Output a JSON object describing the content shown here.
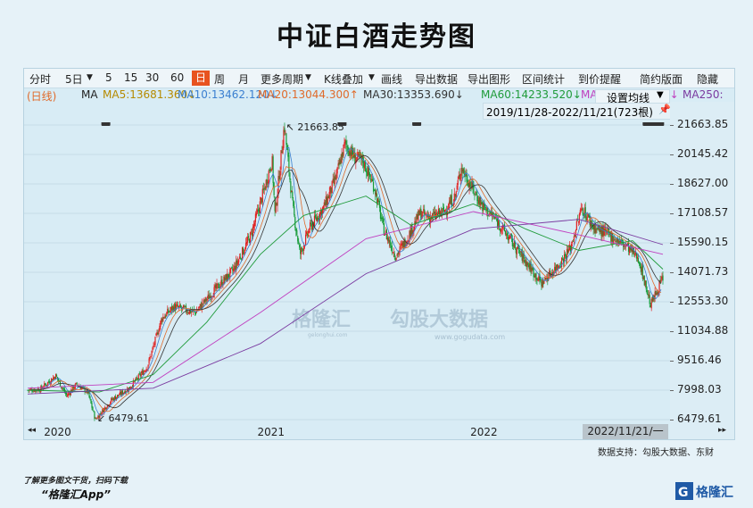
{
  "title": "中证白酒走势图",
  "toolbar": {
    "items": [
      "分时",
      "5日",
      "5",
      "15",
      "30",
      "60",
      "日",
      "周",
      "月",
      "更多周期",
      "K线叠加",
      "画线",
      "导出数据",
      "导出图形",
      "区间统计",
      "到价提醒",
      "简约版面",
      "隐藏"
    ],
    "active": "日",
    "dropdown_arrow": "▼"
  },
  "ma_row": {
    "prefix": "(日线)",
    "ma_label": "MA",
    "items": [
      {
        "text": "MA5:13681.360↓",
        "color": "#b58a00"
      },
      {
        "text": "MA10:13462.120↓",
        "color": "#3a7fd0"
      },
      {
        "text": "MA20:13044.300↑",
        "color": "#e06a2a"
      },
      {
        "text": "MA30:13353.690↓",
        "color": "#333333"
      },
      {
        "text": "MA60:14233.520↓",
        "color": "#1f9b3a"
      },
      {
        "text": "MA",
        "color": "#c040c0"
      },
      {
        "text": "0↓",
        "color": "#c040c0"
      },
      {
        "text": "MA250:",
        "color": "#7a3aa0"
      }
    ]
  },
  "settings": {
    "label": "设置均线",
    "arrow": "▼"
  },
  "range": {
    "text": "2019/11/28-2022/11/21(723根)",
    "pin_icon": "pin-icon"
  },
  "max_label": "21663.85",
  "min_label": "6479.61",
  "watermark": {
    "brand": "格隆汇",
    "sub": "gelonghui.com",
    "brand2": "勾股大数据",
    "sub2": "www.gogudata.com"
  },
  "current_date": "2022/11/21/一",
  "source": "数据支持：勾股大数据、东财",
  "footnote_line1": "了解更多图文干货，扫码下载",
  "footnote_line2": "“格隆汇App”",
  "logo_text": "格隆汇",
  "nav_left": "◂◂",
  "nav_right": "▸▸",
  "chart_data": {
    "type": "candlestick",
    "title": "中证白酒走势图",
    "x_range": [
      "2019/11/28",
      "2022/11/21"
    ],
    "bars": 723,
    "ylim": [
      6479.61,
      21663.85
    ],
    "y_ticks": [
      21663.85,
      20145.42,
      18627.0,
      17108.57,
      15590.15,
      14071.73,
      12553.3,
      11034.88,
      9516.46,
      7998.03,
      6479.61
    ],
    "x_ticks": [
      {
        "label": "2020",
        "date": "2020-01-01"
      },
      {
        "label": "2021",
        "date": "2021-01-01"
      },
      {
        "label": "2022",
        "date": "2022-01-01"
      }
    ],
    "close_series": [
      [
        "2019-11-28",
        8000
      ],
      [
        "2019-12-20",
        8050
      ],
      [
        "2020-01-15",
        8750
      ],
      [
        "2020-02-03",
        7700
      ],
      [
        "2020-02-20",
        8300
      ],
      [
        "2020-03-10",
        7900
      ],
      [
        "2020-03-23",
        6480
      ],
      [
        "2020-04-20",
        7500
      ],
      [
        "2020-05-20",
        8100
      ],
      [
        "2020-06-20",
        9200
      ],
      [
        "2020-07-15",
        11700
      ],
      [
        "2020-08-05",
        12300
      ],
      [
        "2020-09-10",
        12000
      ],
      [
        "2020-10-15",
        13200
      ],
      [
        "2020-11-15",
        14200
      ],
      [
        "2020-12-15",
        16000
      ],
      [
        "2021-01-08",
        18500
      ],
      [
        "2021-01-20",
        19900
      ],
      [
        "2021-01-25",
        17000
      ],
      [
        "2021-02-10",
        21664
      ],
      [
        "2021-02-25",
        17300
      ],
      [
        "2021-03-09",
        15000
      ],
      [
        "2021-03-25",
        16300
      ],
      [
        "2021-04-20",
        17500
      ],
      [
        "2021-05-10",
        19000
      ],
      [
        "2021-05-25",
        20700
      ],
      [
        "2021-06-10",
        20000
      ],
      [
        "2021-06-25",
        19800
      ],
      [
        "2021-07-15",
        18400
      ],
      [
        "2021-07-30",
        16300
      ],
      [
        "2021-08-20",
        14900
      ],
      [
        "2021-09-10",
        15900
      ],
      [
        "2021-09-30",
        17100
      ],
      [
        "2021-10-20",
        16900
      ],
      [
        "2021-11-10",
        17200
      ],
      [
        "2021-11-30",
        18000
      ],
      [
        "2021-12-10",
        19500
      ],
      [
        "2021-12-24",
        18700
      ],
      [
        "2022-01-15",
        17500
      ],
      [
        "2022-02-10",
        16700
      ],
      [
        "2022-03-10",
        15500
      ],
      [
        "2022-04-27",
        13500
      ],
      [
        "2022-05-30",
        14600
      ],
      [
        "2022-06-15",
        15300
      ],
      [
        "2022-07-05",
        17400
      ],
      [
        "2022-07-25",
        16400
      ],
      [
        "2022-08-20",
        16000
      ],
      [
        "2022-09-20",
        15400
      ],
      [
        "2022-10-10",
        14800
      ],
      [
        "2022-10-31",
        12400
      ],
      [
        "2022-11-21",
        13800
      ]
    ],
    "ma_series": [
      {
        "name": "MA60",
        "color": "#1f9b3a",
        "values": [
          [
            "2019-11-28",
            8000
          ],
          [
            "2020-03-30",
            7900
          ],
          [
            "2020-06-30",
            8800
          ],
          [
            "2020-09-30",
            11500
          ],
          [
            "2020-12-31",
            15000
          ],
          [
            "2021-03-15",
            17000
          ],
          [
            "2021-06-30",
            18000
          ],
          [
            "2021-09-15",
            16500
          ],
          [
            "2021-12-31",
            17600
          ],
          [
            "2022-03-31",
            16300
          ],
          [
            "2022-06-30",
            15200
          ],
          [
            "2022-09-30",
            15700
          ],
          [
            "2022-11-21",
            14233.52
          ]
        ]
      },
      {
        "name": "MA120",
        "color": "#c040c0",
        "values": [
          [
            "2019-11-28",
            8100
          ],
          [
            "2020-06-30",
            8400
          ],
          [
            "2020-12-31",
            12000
          ],
          [
            "2021-06-30",
            15800
          ],
          [
            "2021-12-31",
            17200
          ],
          [
            "2022-06-30",
            16000
          ],
          [
            "2022-11-21",
            15000
          ]
        ]
      },
      {
        "name": "MA250",
        "color": "#7a3aa0",
        "values": [
          [
            "2019-11-28",
            7800
          ],
          [
            "2020-06-30",
            8100
          ],
          [
            "2020-12-31",
            10400
          ],
          [
            "2021-06-30",
            14000
          ],
          [
            "2021-12-31",
            16300
          ],
          [
            "2022-06-30",
            16800
          ],
          [
            "2022-11-21",
            15500
          ]
        ]
      }
    ]
  }
}
